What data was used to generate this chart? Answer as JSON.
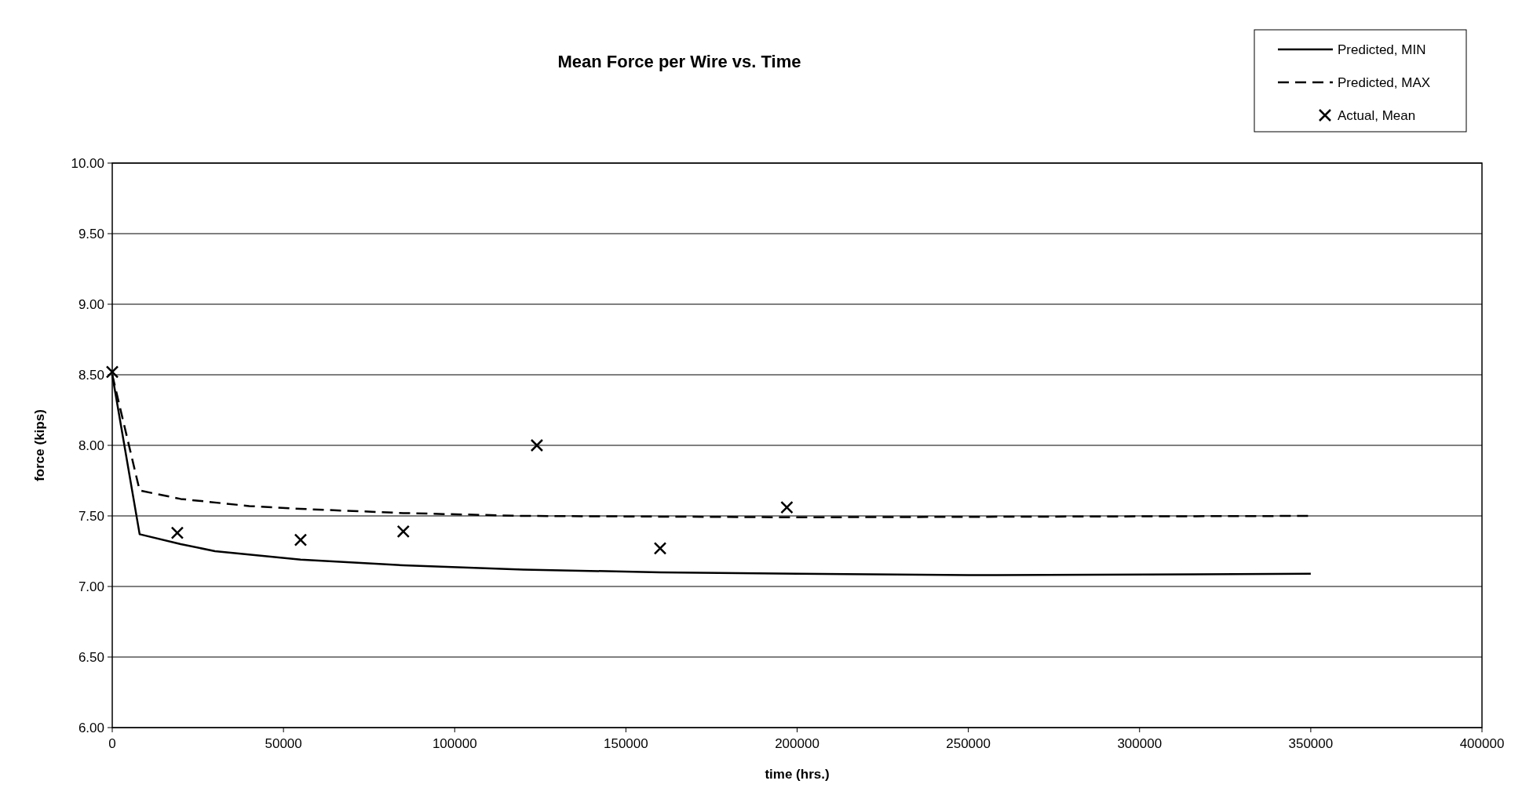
{
  "chart_data": {
    "type": "line",
    "title": "Mean Force per Wire vs. Time",
    "xlabel": "time (hrs.)",
    "ylabel": "force (kips)",
    "xlim": [
      0,
      400000
    ],
    "xticks": [
      0,
      50000,
      100000,
      150000,
      200000,
      250000,
      300000,
      350000,
      400000
    ],
    "ylim": [
      6,
      10
    ],
    "yticks": [
      {
        "value": 6,
        "label": "6.00"
      },
      {
        "value": 6.5,
        "label": "6.50"
      },
      {
        "value": 7,
        "label": "7.00"
      },
      {
        "value": 7.5,
        "label": "7.50"
      },
      {
        "value": 8,
        "label": "8.00"
      },
      {
        "value": 8.5,
        "label": "8.50"
      },
      {
        "value": 9,
        "label": "9.00"
      },
      {
        "value": 9.5,
        "label": "9.50"
      },
      {
        "value": 10,
        "label": "10.00"
      }
    ],
    "grid": "y",
    "legend": "top right",
    "series": [
      {
        "name": "Predicted, MIN",
        "type": "line",
        "line_style": "solid",
        "color": "#000000",
        "x": [
          0,
          8000,
          20000,
          30000,
          55000,
          85000,
          120000,
          160000,
          200000,
          250000,
          350000
        ],
        "values": [
          8.5,
          7.37,
          7.3,
          7.25,
          7.19,
          7.15,
          7.12,
          7.1,
          7.09,
          7.08,
          7.09
        ]
      },
      {
        "name": "Predicted, MAX",
        "type": "line",
        "line_style": "dashed",
        "color": "#000000",
        "x": [
          0,
          8000,
          20000,
          40000,
          55000,
          85000,
          120000,
          200000,
          350000
        ],
        "values": [
          8.5,
          7.68,
          7.62,
          7.57,
          7.55,
          7.52,
          7.5,
          7.49,
          7.5
        ]
      },
      {
        "name": "Actual, Mean",
        "type": "scatter",
        "marker": "cross",
        "color": "#000000",
        "x": [
          0,
          19000,
          55000,
          85000,
          124000,
          160000,
          197000
        ],
        "values": [
          8.52,
          7.38,
          7.33,
          7.39,
          8.0,
          7.27,
          7.56
        ]
      }
    ]
  }
}
